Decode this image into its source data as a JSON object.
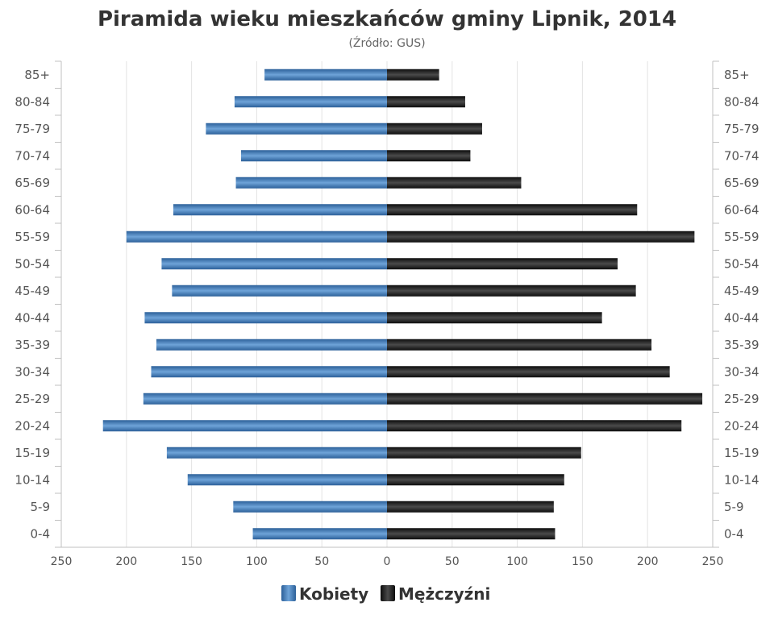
{
  "chart_data": {
    "type": "bar",
    "orientation": "horizontal",
    "layout": "population-pyramid",
    "title": "Piramida wieku mieszkańców gminy Lipnik, 2014",
    "subtitle": "(Źródło: GUS)",
    "categories": [
      "85+",
      "80-84",
      "75-79",
      "70-74",
      "65-69",
      "60-64",
      "55-59",
      "50-54",
      "45-49",
      "40-44",
      "35-39",
      "30-34",
      "25-29",
      "20-24",
      "15-19",
      "10-14",
      "5-9",
      "0-4"
    ],
    "series": [
      {
        "name": "Kobiety",
        "side": "left",
        "color": "#3a76b4",
        "values": [
          94,
          117,
          139,
          112,
          116,
          164,
          200,
          173,
          165,
          186,
          177,
          181,
          187,
          218,
          169,
          153,
          118,
          103
        ]
      },
      {
        "name": "Mężczyźni",
        "side": "right",
        "color": "#1e1e1e",
        "values": [
          40,
          60,
          73,
          64,
          103,
          192,
          236,
          177,
          191,
          165,
          203,
          217,
          242,
          226,
          149,
          136,
          128,
          129
        ]
      }
    ],
    "xlim": [
      -250,
      250
    ],
    "x_ticks": [
      "250",
      "200",
      "150",
      "100",
      "50",
      "0",
      "50",
      "100",
      "150",
      "200",
      "250"
    ],
    "grid": true,
    "legend_position": "bottom-center"
  }
}
